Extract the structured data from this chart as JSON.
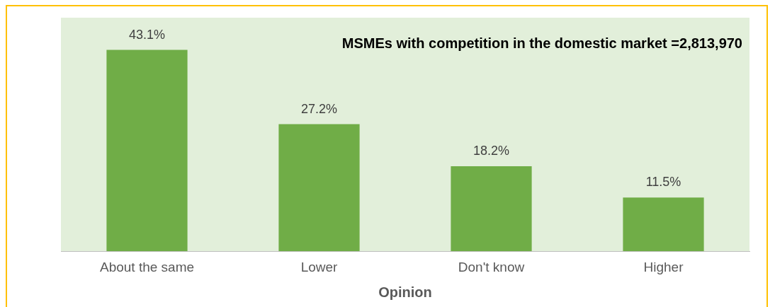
{
  "chart_data": {
    "type": "bar",
    "xlabel": "Opinion",
    "categories": [
      "About the same",
      "Lower",
      "Don't know",
      "Higher"
    ],
    "values": [
      43.1,
      27.2,
      18.2,
      11.5
    ],
    "color": "#70ad47",
    "value_labels": [
      "43.1%",
      "27.2%",
      "18.2%",
      "11.5%"
    ],
    "annotations": [
      "MSMEs with competition in the domestic market =2,813,970"
    ],
    "grid": false,
    "legend": false
  }
}
